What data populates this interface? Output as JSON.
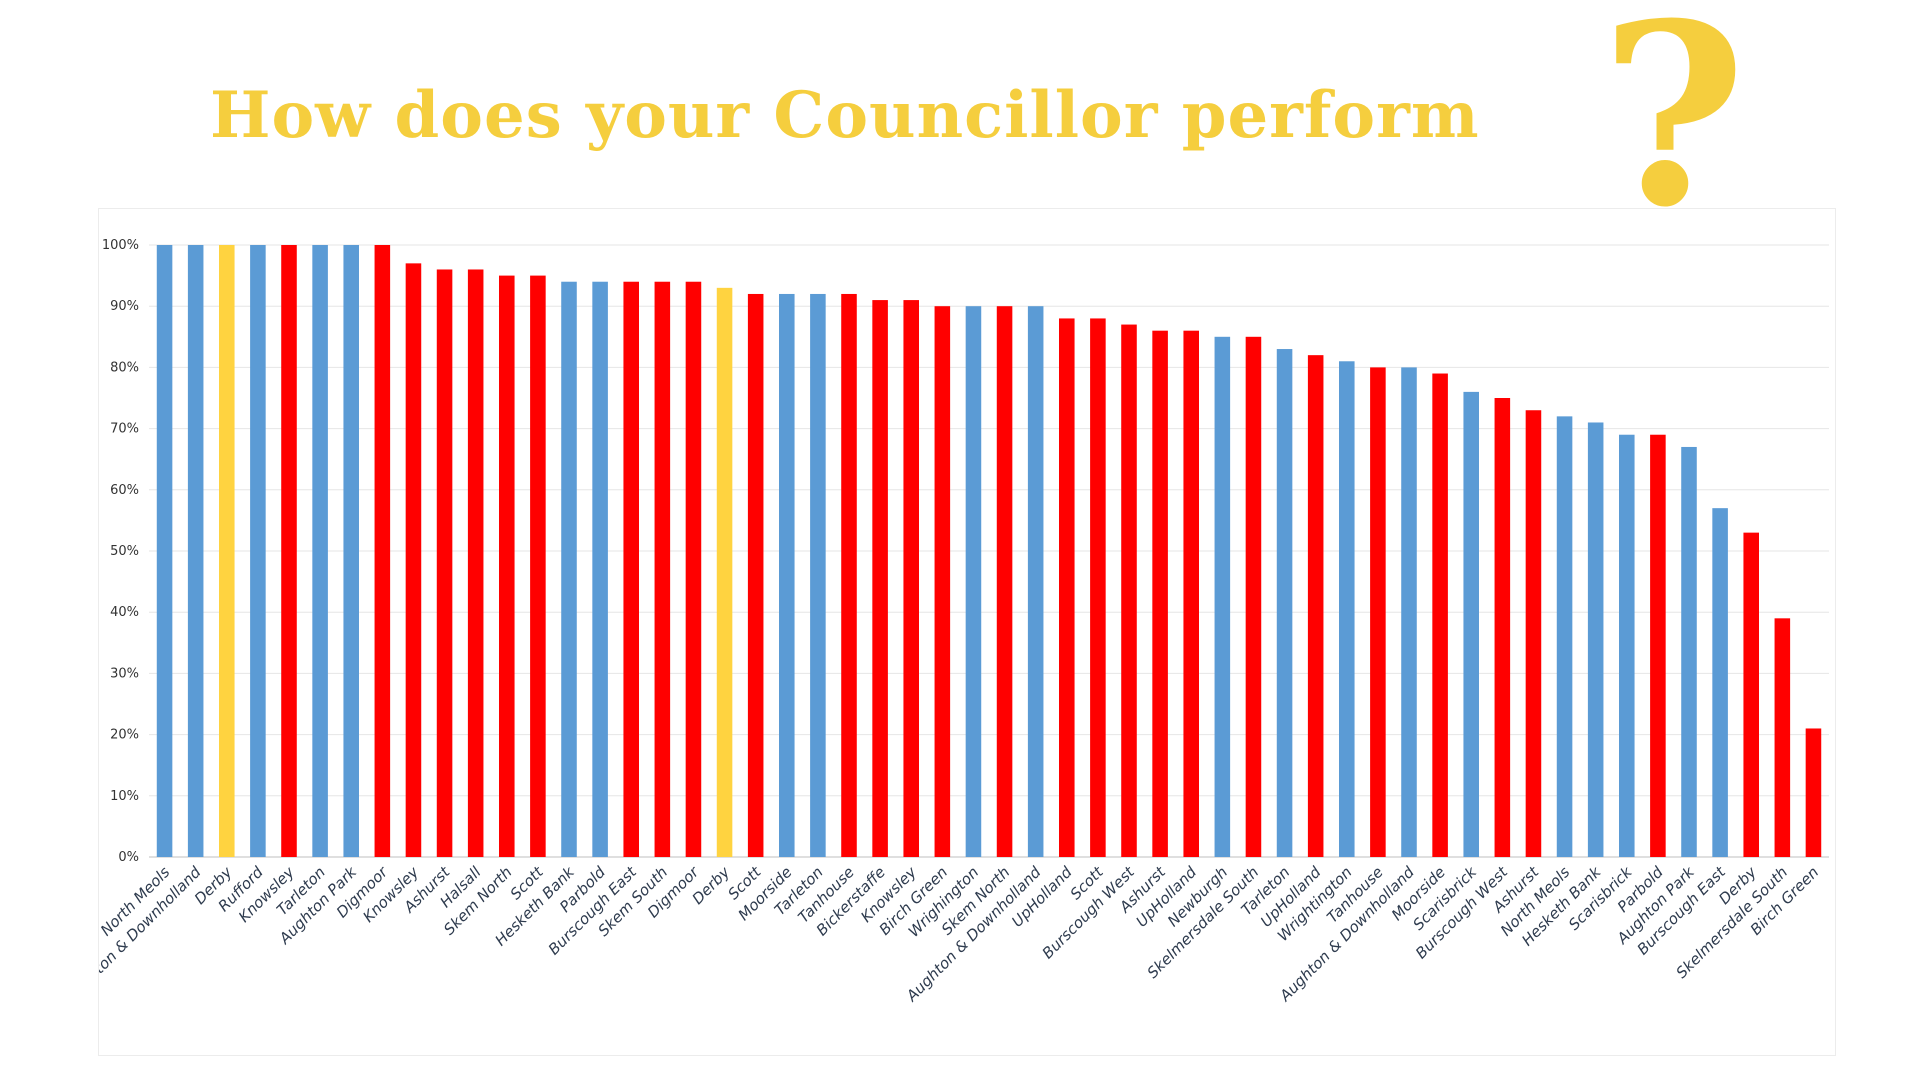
{
  "title": "How does your Councillor perform",
  "title_mark": "?",
  "colors": {
    "title": "#f5ce3e",
    "blue": "#5b9bd5",
    "red": "#ff0000",
    "yellow": "#ffd340",
    "grid": "#e6e6e6"
  },
  "chart_data": {
    "type": "bar",
    "ylim": [
      0,
      100
    ],
    "y_ticks": [
      "0%",
      "10%",
      "20%",
      "30%",
      "40%",
      "50%",
      "60%",
      "70%",
      "80%",
      "90%",
      "100%"
    ],
    "grid": true,
    "categories": [
      "North Meols",
      "Aughton & Downholland",
      "Derby",
      "Rufford",
      "Knowsley",
      "Tarleton",
      "Aughton Park",
      "Digmoor",
      "Knowsley",
      "Ashurst",
      "Halsall",
      "Skem North",
      "Scott",
      "Hesketh Bank",
      "Parbold",
      "Burscough East",
      "Skem South",
      "Digmoor",
      "Derby",
      "Scott",
      "Moorside",
      "Tarleton",
      "Tanhouse",
      "Bickerstaffe",
      "Knowsley",
      "Birch Green",
      "Wrighington",
      "Skem North",
      "Aughton & Downholland",
      "UpHolland",
      "Scott",
      "Burscough West",
      "Ashurst",
      "UpHolland",
      "Newburgh",
      "Skelmersdale South",
      "Tarleton",
      "UpHolland",
      "Wrightington",
      "Tanhouse",
      "Aughton & Downholland",
      "Moorside",
      "Scarisbrick",
      "Burscough West",
      "Ashurst",
      "North Meols",
      "Hesketh Bank",
      "Scarisbrick",
      "Parbold",
      "Aughton Park",
      "Burscough East",
      "Derby",
      "Skelmersdale South",
      "Birch Green"
    ],
    "values": [
      100,
      100,
      100,
      100,
      100,
      100,
      100,
      100,
      97,
      96,
      96,
      95,
      95,
      94,
      94,
      94,
      94,
      94,
      93,
      92,
      92,
      92,
      92,
      91,
      91,
      90,
      90,
      90,
      90,
      88,
      88,
      87,
      86,
      86,
      85,
      85,
      83,
      82,
      81,
      80,
      80,
      79,
      76,
      75,
      73,
      72,
      71,
      69,
      69,
      67,
      57,
      53,
      39,
      21
    ],
    "bar_colors": [
      "blue",
      "blue",
      "yellow",
      "blue",
      "red",
      "blue",
      "blue",
      "red",
      "red",
      "red",
      "red",
      "red",
      "red",
      "blue",
      "blue",
      "red",
      "red",
      "red",
      "yellow",
      "red",
      "blue",
      "blue",
      "red",
      "red",
      "red",
      "red",
      "blue",
      "red",
      "blue",
      "red",
      "red",
      "red",
      "red",
      "red",
      "blue",
      "red",
      "blue",
      "red",
      "blue",
      "red",
      "blue",
      "red",
      "blue",
      "red",
      "red",
      "blue",
      "blue",
      "blue",
      "red",
      "blue",
      "blue",
      "red",
      "red",
      "red"
    ]
  }
}
